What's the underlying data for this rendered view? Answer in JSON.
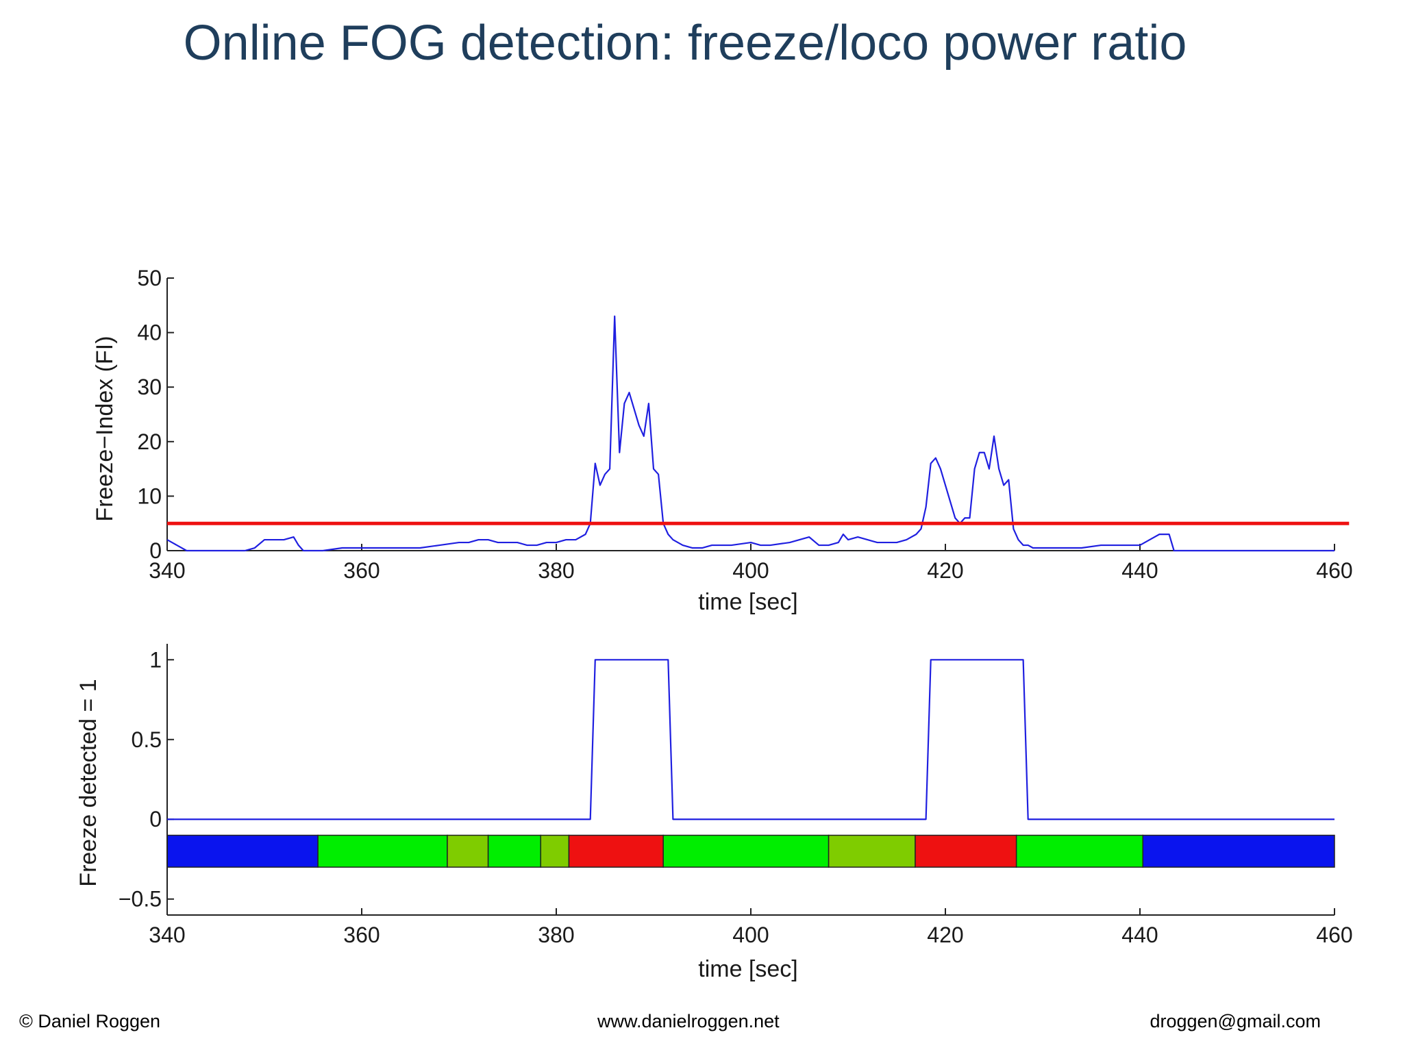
{
  "slide": {
    "title": "Online FOG detection: freeze/loco power ratio",
    "footer_left": "© Daniel Roggen",
    "footer_center": "www.danielroggen.net",
    "footer_right": "droggen@gmail.com"
  },
  "chart_data": [
    {
      "type": "line",
      "ylabel": "Freeze−Index (FI)",
      "xlabel": "time [sec]",
      "xlim": [
        340,
        460
      ],
      "ylim": [
        0,
        50
      ],
      "xticks": [
        340,
        360,
        380,
        400,
        420,
        440,
        460
      ],
      "yticks": [
        0,
        10,
        20,
        30,
        40,
        50
      ],
      "grid": false,
      "series": [
        {
          "color": "#1f1fe0",
          "x": [
            340,
            341,
            342,
            344,
            346,
            348,
            349,
            350,
            351,
            352,
            353,
            353.5,
            354,
            356,
            358,
            360,
            362,
            364,
            366,
            368,
            370,
            371,
            372,
            373,
            374,
            376,
            377,
            378,
            379,
            380,
            381,
            382,
            383,
            383.5,
            384,
            384.5,
            385,
            385.5,
            386,
            386.5,
            387,
            387.5,
            388,
            388.5,
            389,
            389.5,
            390,
            390.5,
            391,
            391.5,
            392,
            393,
            394,
            395,
            396,
            398,
            400,
            401,
            402,
            404,
            405,
            406,
            407,
            408,
            409,
            409.5,
            410,
            411,
            412,
            413,
            414,
            415,
            416,
            417,
            417.5,
            418,
            418.5,
            419,
            419.5,
            420,
            420.5,
            421,
            421.5,
            422,
            422.5,
            423,
            423.5,
            424,
            424.5,
            425,
            425.5,
            426,
            426.5,
            427,
            427.5,
            428,
            428.5,
            429,
            430,
            431,
            432,
            434,
            436,
            438,
            440,
            441,
            442,
            443,
            443.5,
            444,
            446,
            448,
            450,
            452,
            454,
            456,
            458,
            460
          ],
          "y": [
            2,
            1,
            0,
            0,
            0,
            0,
            0.5,
            2,
            2,
            2,
            2.5,
            1,
            0,
            0,
            0.5,
            0.5,
            0.5,
            0.5,
            0.5,
            1,
            1.5,
            1.5,
            2,
            2,
            1.5,
            1.5,
            1,
            1,
            1.5,
            1.5,
            2,
            2,
            3,
            5,
            16,
            12,
            14,
            15,
            43,
            18,
            27,
            29,
            26,
            23,
            21,
            27,
            15,
            14,
            5,
            3,
            2,
            1,
            0.5,
            0.5,
            1,
            1,
            1.5,
            1,
            1,
            1.5,
            2,
            2.5,
            1,
            1,
            1.5,
            3,
            2,
            2.5,
            2,
            1.5,
            1.5,
            1.5,
            2,
            3,
            4,
            8,
            16,
            17,
            15,
            12,
            9,
            6,
            5,
            6,
            6,
            15,
            18,
            18,
            15,
            21,
            15,
            12,
            13,
            4,
            2,
            1,
            1,
            0.5,
            0.5,
            0.5,
            0.5,
            0.5,
            1,
            1,
            1,
            2,
            3,
            3,
            0,
            0,
            0,
            0,
            0,
            0,
            0,
            0,
            0,
            0
          ]
        },
        {
          "color": "#ee1111",
          "x": [
            340,
            461.5
          ],
          "y": [
            5,
            5
          ]
        }
      ]
    },
    {
      "type": "line",
      "ylabel": "Freeze detected = 1",
      "xlabel": "time [sec]",
      "xlim": [
        340,
        460
      ],
      "ylim": [
        -0.6,
        1.1
      ],
      "xticks": [
        340,
        360,
        380,
        400,
        420,
        440,
        460
      ],
      "yticks": [
        -0.5,
        0,
        0.5,
        1
      ],
      "ytick_labels": [
        "−0.5",
        "0",
        "0.5",
        "1"
      ],
      "grid": false,
      "series": [
        {
          "color": "#1f1fe0",
          "x": [
            340,
            383.5,
            384,
            391.5,
            392,
            418,
            418.5,
            428,
            428.5,
            460
          ],
          "y": [
            0,
            0,
            1,
            1,
            0,
            0,
            1,
            1,
            0,
            0
          ]
        }
      ],
      "bands": [
        {
          "x0": 340,
          "x1": 355.5,
          "color": "#0a14ee"
        },
        {
          "x0": 355.5,
          "x1": 368.8,
          "color": "#00ee00"
        },
        {
          "x0": 368.8,
          "x1": 373,
          "color": "#7fcc00"
        },
        {
          "x0": 373,
          "x1": 378.4,
          "color": "#00ee00"
        },
        {
          "x0": 378.4,
          "x1": 381.3,
          "color": "#7fcc00"
        },
        {
          "x0": 381.3,
          "x1": 391,
          "color": "#ee1111"
        },
        {
          "x0": 391,
          "x1": 408,
          "color": "#00ee00"
        },
        {
          "x0": 408,
          "x1": 416.9,
          "color": "#7fcc00"
        },
        {
          "x0": 416.9,
          "x1": 427.3,
          "color": "#ee1111"
        },
        {
          "x0": 427.3,
          "x1": 440.3,
          "color": "#00ee00"
        },
        {
          "x0": 440.3,
          "x1": 460,
          "color": "#0a14ee"
        }
      ],
      "band_y_range": [
        -0.3,
        -0.1
      ]
    }
  ]
}
